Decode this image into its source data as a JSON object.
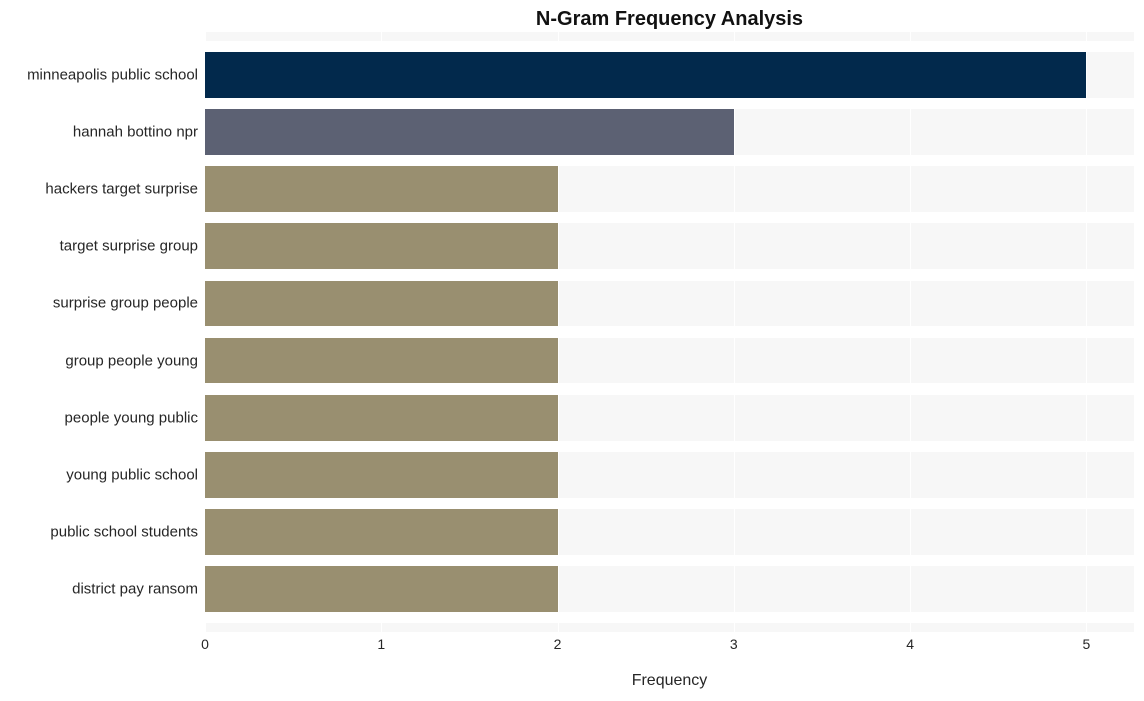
{
  "chart": {
    "type": "horizontal-bar",
    "title": "N-Gram Frequency Analysis",
    "title_fontsize": 20,
    "title_fontweight": "bold",
    "xlabel": "Frequency",
    "xlabel_fontsize": 16,
    "ylabel_fontsize": 15,
    "tick_fontsize": 14,
    "background_color": "#ffffff",
    "plot_background_color": "#f7f7f7",
    "grid_color": "#ffffff",
    "text_color": "#262626",
    "xlim": [
      0,
      5.27
    ],
    "xticks": [
      0,
      1,
      2,
      3,
      4,
      5
    ],
    "bar_height_ratio": 0.8,
    "categories": [
      "minneapolis public school",
      "hannah bottino npr",
      "hackers target surprise",
      "target surprise group",
      "surprise group people",
      "group people young",
      "people young public",
      "young public school",
      "public school students",
      "district pay ransom"
    ],
    "values": [
      5,
      3,
      2,
      2,
      2,
      2,
      2,
      2,
      2,
      2
    ],
    "bar_colors": [
      "#02294c",
      "#5c6173",
      "#998f70",
      "#998f70",
      "#998f70",
      "#998f70",
      "#998f70",
      "#998f70",
      "#998f70",
      "#998f70"
    ]
  }
}
